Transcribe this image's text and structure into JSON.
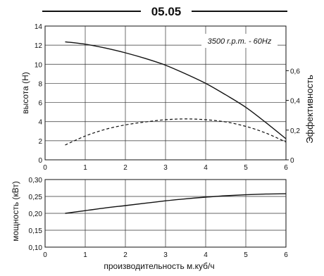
{
  "header": {
    "title": "05.05"
  },
  "chart_data": [
    {
      "type": "line",
      "annotation": "3500 r.p.m. - 60Hz",
      "xlabel": "",
      "ylabel": "высота (Н)",
      "ylabel_right": "Эффективность",
      "xlim": [
        0,
        6
      ],
      "ylim": [
        0,
        14
      ],
      "ylim_right": [
        0,
        0.9
      ],
      "x_ticks": [
        "0",
        "1",
        "2",
        "3",
        "4",
        "5",
        "6"
      ],
      "y_ticks": [
        "0",
        "2",
        "4",
        "6",
        "8",
        "10",
        "12",
        "14"
      ],
      "y_ticks_right": [
        "0",
        "0,2",
        "0,4",
        "0,6"
      ],
      "grid": true,
      "series": [
        {
          "axis": "left",
          "style": "solid",
          "x": [
            0.5,
            1,
            1.5,
            2,
            2.5,
            3,
            3.5,
            4,
            4.5,
            5,
            5.5,
            6
          ],
          "values": [
            12.35,
            12.1,
            11.7,
            11.2,
            10.6,
            9.9,
            9.0,
            8.0,
            6.8,
            5.5,
            3.9,
            2.2
          ]
        },
        {
          "axis": "right",
          "style": "dashed",
          "x": [
            0.5,
            1,
            1.5,
            2,
            2.5,
            3,
            3.5,
            4,
            4.5,
            5,
            5.5,
            6
          ],
          "values": [
            0.1,
            0.16,
            0.205,
            0.235,
            0.255,
            0.27,
            0.275,
            0.27,
            0.255,
            0.225,
            0.18,
            0.12
          ]
        }
      ]
    },
    {
      "type": "line",
      "xlabel": "производительность м.куб/ч",
      "ylabel": "мощность (кВт)",
      "xlim": [
        0,
        6
      ],
      "ylim": [
        0.1,
        0.3
      ],
      "x_ticks": [
        "0",
        "1",
        "2",
        "3",
        "4",
        "5",
        "6"
      ],
      "y_ticks": [
        "0,10",
        "0,15",
        "0,20",
        "0,25",
        "0,30"
      ],
      "grid": true,
      "series": [
        {
          "style": "solid",
          "x": [
            0.5,
            1,
            1.5,
            2,
            2.5,
            3,
            3.5,
            4,
            4.5,
            5,
            5.5,
            6
          ],
          "values": [
            0.2,
            0.208,
            0.216,
            0.223,
            0.23,
            0.237,
            0.243,
            0.248,
            0.252,
            0.255,
            0.257,
            0.258
          ]
        }
      ]
    }
  ]
}
